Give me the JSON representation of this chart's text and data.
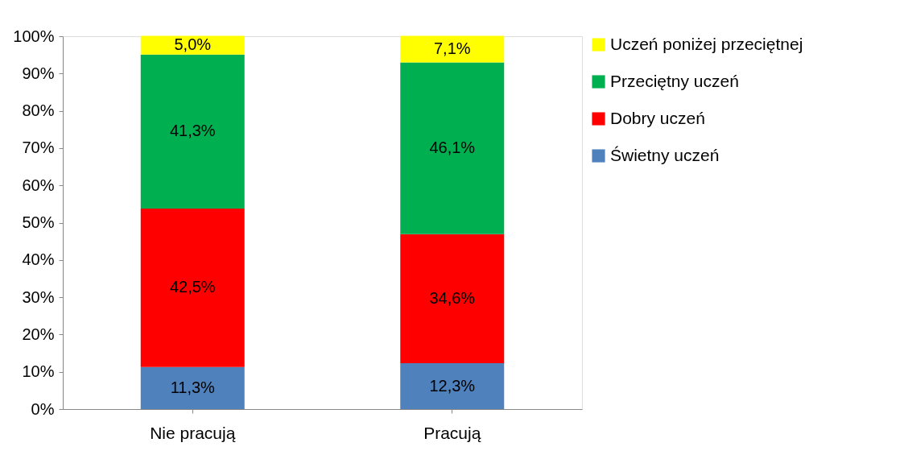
{
  "chart_data": {
    "type": "bar",
    "stacked": true,
    "categories": [
      "Nie pracują",
      "Pracują"
    ],
    "series": [
      {
        "name": "Świetny uczeń",
        "color": "#4f81bd",
        "values": [
          11.3,
          12.3
        ],
        "value_labels": [
          "11,3%",
          "12,3%"
        ]
      },
      {
        "name": "Dobry uczeń",
        "color": "#ff0000",
        "values": [
          42.5,
          34.6
        ],
        "value_labels": [
          "42,5%",
          "34,6%"
        ]
      },
      {
        "name": "Przeciętny uczeń",
        "color": "#00b050",
        "values": [
          41.3,
          46.1
        ],
        "value_labels": [
          "41,3%",
          "46,1%"
        ]
      },
      {
        "name": "Uczeń poniżej przeciętnej",
        "color": "#ffff00",
        "values": [
          5.0,
          7.1
        ],
        "value_labels": [
          "5,0%",
          "7,1%"
        ]
      }
    ],
    "ylim": [
      0,
      100
    ],
    "yticks": [
      {
        "value": 0,
        "label": "0%"
      },
      {
        "value": 10,
        "label": "10%"
      },
      {
        "value": 20,
        "label": "20%"
      },
      {
        "value": 30,
        "label": "30%"
      },
      {
        "value": 40,
        "label": "40%"
      },
      {
        "value": 50,
        "label": "50%"
      },
      {
        "value": 60,
        "label": "60%"
      },
      {
        "value": 70,
        "label": "70%"
      },
      {
        "value": 80,
        "label": "80%"
      },
      {
        "value": 90,
        "label": "90%"
      },
      {
        "value": 100,
        "label": "100%"
      }
    ],
    "grid": false,
    "legend": "right"
  }
}
